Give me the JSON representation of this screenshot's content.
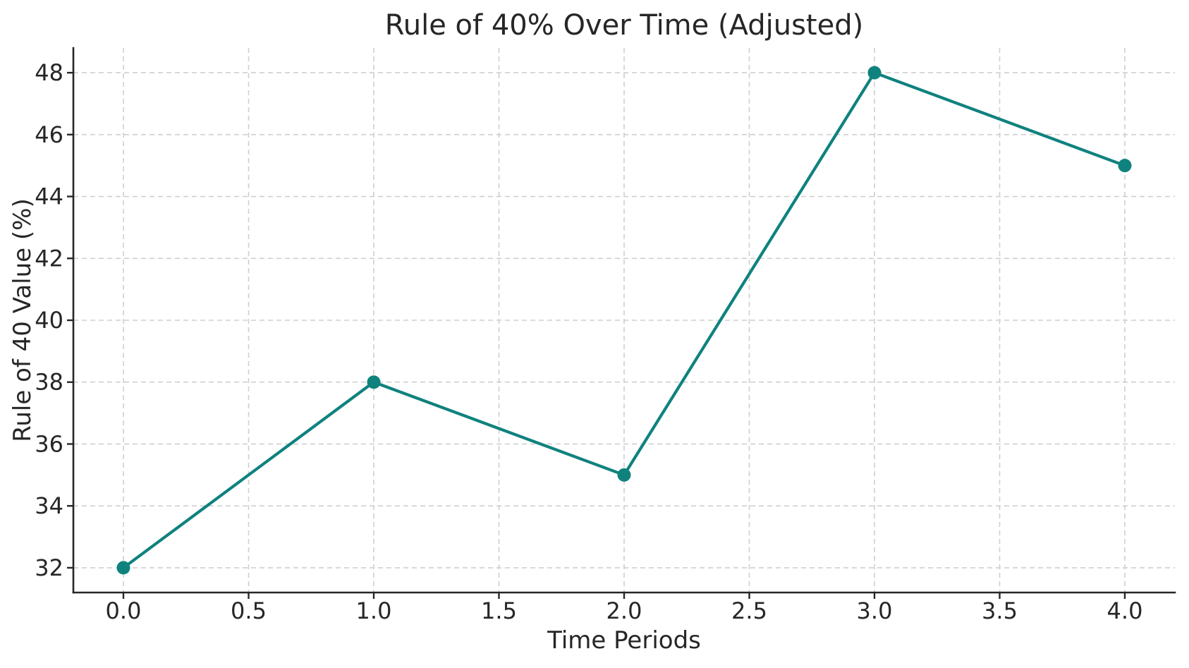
{
  "chart_data": {
    "type": "line",
    "title": "Rule of 40% Over Time (Adjusted)",
    "xlabel": "Time Periods",
    "ylabel": "Rule of 40 Value (%)",
    "x": [
      0,
      1,
      2,
      3,
      4
    ],
    "y": [
      32,
      38,
      35,
      48,
      45
    ],
    "series": [
      {
        "name": "Rule of 40 Value",
        "x": [
          0,
          1,
          2,
          3,
          4
        ],
        "y": [
          32,
          38,
          35,
          48,
          45
        ]
      }
    ],
    "xlim": [
      -0.2,
      4.2
    ],
    "ylim": [
      31.2,
      48.8
    ],
    "xticks": [
      0.0,
      0.5,
      1.0,
      1.5,
      2.0,
      2.5,
      3.0,
      3.5,
      4.0
    ],
    "xtick_labels": [
      "0.0",
      "0.5",
      "1.0",
      "1.5",
      "2.0",
      "2.5",
      "3.0",
      "3.5",
      "4.0"
    ],
    "yticks": [
      32,
      34,
      36,
      38,
      40,
      42,
      44,
      46,
      48
    ],
    "ytick_labels": [
      "32",
      "34",
      "36",
      "38",
      "40",
      "42",
      "44",
      "46",
      "48"
    ],
    "grid": true,
    "grid_style": "dashed",
    "legend": null,
    "marker": "circle",
    "colors": {
      "line": "#0f827e",
      "marker": "#0f827e",
      "grid": "#cfcfcf",
      "spine": "#262626",
      "tick": "#262626",
      "text": "#262626",
      "background": "#ffffff"
    }
  }
}
